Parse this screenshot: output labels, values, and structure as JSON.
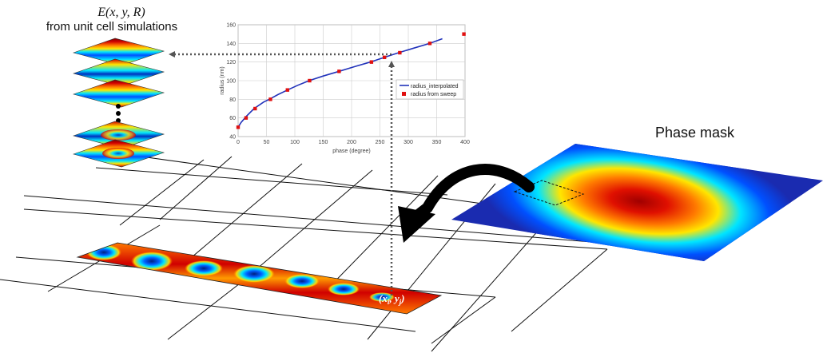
{
  "labels": {
    "field_function": "E(x, y, R)",
    "source_note": "from unit cell simulations",
    "phase_mask": "Phase mask",
    "coordinate": "(x_i, y_j)",
    "coordinate_main": "(x",
    "coordinate_sub_i": "i",
    "coordinate_sep": ", y",
    "coordinate_sub_j": "j",
    "coordinate_close": ")"
  },
  "colors": {
    "jet_dark_blue": "#00008f",
    "jet_blue": "#0050ff",
    "jet_cyan": "#00e5ff",
    "jet_yellow": "#ffe600",
    "jet_orange": "#ff7a00",
    "jet_red": "#d00000",
    "jet_dark_red": "#800000",
    "interp_line": "#2233bb",
    "sweep_points": "#e01010"
  },
  "chart_data": {
    "type": "line",
    "xlabel": "phase (degree)",
    "ylabel": "radius (nm)",
    "xlim": [
      0,
      400
    ],
    "ylim": [
      40,
      160
    ],
    "xticks": [
      0,
      50,
      100,
      150,
      200,
      250,
      300,
      350,
      400
    ],
    "yticks": [
      40,
      60,
      80,
      100,
      120,
      140,
      160
    ],
    "grid": true,
    "legend_position": "right",
    "series": [
      {
        "name": "radius_interpolated",
        "kind": "line",
        "x": [
          0,
          5,
          15,
          28,
          45,
          55,
          70,
          87,
          105,
          125,
          150,
          178,
          205,
          233,
          258,
          283,
          310,
          338,
          360
        ],
        "y": [
          50,
          55,
          62,
          70,
          77,
          80,
          85,
          90,
          95,
          100,
          105,
          110,
          115,
          120,
          125,
          130,
          135,
          140,
          145
        ]
      },
      {
        "name": "radius from sweep",
        "kind": "scatter",
        "x": [
          0,
          14,
          30,
          57,
          87,
          126,
          178,
          235,
          258,
          285,
          338,
          398
        ],
        "y": [
          50,
          60,
          70,
          80,
          90,
          100,
          110,
          120,
          125,
          130,
          140,
          150
        ]
      }
    ]
  }
}
